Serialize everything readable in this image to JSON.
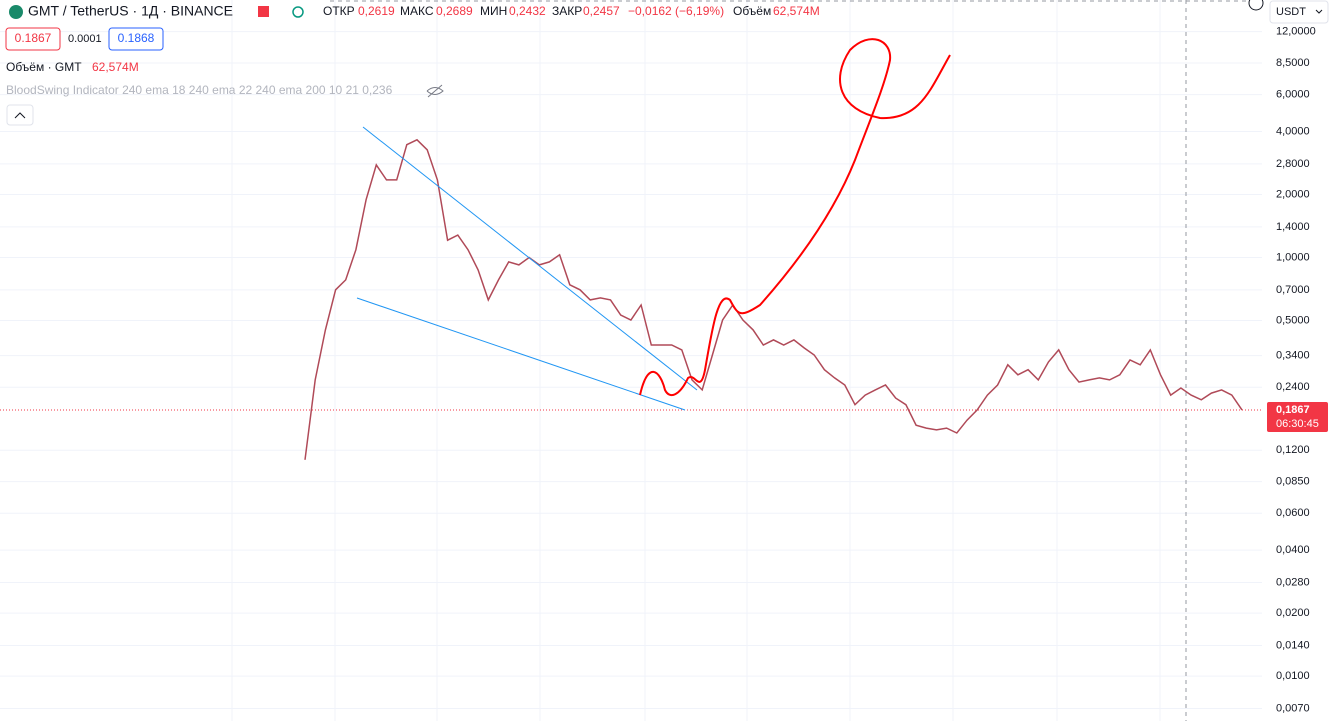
{
  "header": {
    "symbol": "GMT / TetherUS · 1Д · BINANCE",
    "open_label": "ОТКР",
    "open": "0,2619",
    "high_label": "МАКС",
    "high": "0,2689",
    "low_label": "МИН",
    "low": "0,2432",
    "close_label": "ЗАКР",
    "close": "0,2457",
    "change": "−0,0162 (−6,19%)",
    "volume_label": "Объём",
    "volume": "62,574M"
  },
  "order": {
    "sell": "0.1867",
    "spread": "0.0001",
    "buy": "0.1868"
  },
  "volume_indicator": {
    "label": "Объём · GMT",
    "value": "62,574M"
  },
  "indicator": "BloodSwing Indicator 240 ema 18 240 ema 22 240 ema 200 10 21 0,236",
  "currency": "USDT",
  "last_price": {
    "value": 0.1867,
    "label": "0,1867",
    "countdown": "06:30:45"
  },
  "chart_data": {
    "type": "line",
    "log_scale": true,
    "grid": true,
    "color": "#b04a58",
    "ylim": [
      0.0061,
      17
    ],
    "yticks": [
      {
        "value": 12,
        "label": "12,0000"
      },
      {
        "value": 8.5,
        "label": "8,5000"
      },
      {
        "value": 6,
        "label": "6,0000"
      },
      {
        "value": 4,
        "label": "4,0000"
      },
      {
        "value": 2.8,
        "label": "2,8000"
      },
      {
        "value": 2,
        "label": "2,0000"
      },
      {
        "value": 1.4,
        "label": "1,4000"
      },
      {
        "value": 1,
        "label": "1,0000"
      },
      {
        "value": 0.7,
        "label": "0,7000"
      },
      {
        "value": 0.5,
        "label": "0,5000"
      },
      {
        "value": 0.34,
        "label": "0,3400"
      },
      {
        "value": 0.24,
        "label": "0,2400"
      },
      {
        "value": 0.12,
        "label": "0,1200"
      },
      {
        "value": 0.085,
        "label": "0,0850"
      },
      {
        "value": 0.06,
        "label": "0,0600"
      },
      {
        "value": 0.04,
        "label": "0,0400"
      },
      {
        "value": 0.028,
        "label": "0,0280"
      },
      {
        "value": 0.02,
        "label": "0,0200"
      },
      {
        "value": 0.014,
        "label": "0,0140"
      },
      {
        "value": 0.01,
        "label": "0,0100"
      },
      {
        "value": 0.007,
        "label": "0,0070"
      }
    ],
    "values": [
      0.108,
      0.26,
      0.451,
      0.701,
      0.782,
      1.09,
      1.89,
      2.77,
      2.35,
      2.35,
      3.46,
      3.65,
      3.27,
      2.35,
      1.21,
      1.28,
      1.09,
      0.873,
      0.627,
      0.782,
      0.953,
      0.922,
      1.0,
      0.922,
      0.953,
      1.03,
      0.741,
      0.701,
      0.627,
      0.641,
      0.627,
      0.531,
      0.503,
      0.593,
      0.382,
      0.382,
      0.382,
      0.362,
      0.26,
      0.233,
      0.342,
      0.503,
      0.593,
      0.503,
      0.451,
      0.382,
      0.404,
      0.382,
      0.404,
      0.37,
      0.342,
      0.291,
      0.266,
      0.246,
      0.198,
      0.22,
      0.233,
      0.246,
      0.213,
      0.198,
      0.158,
      0.153,
      0.15,
      0.153,
      0.145,
      0.167,
      0.187,
      0.22,
      0.246,
      0.307,
      0.275,
      0.291,
      0.26,
      0.317,
      0.362,
      0.291,
      0.254,
      0.26,
      0.266,
      0.26,
      0.275,
      0.324,
      0.307,
      0.362,
      0.275,
      0.22,
      0.238,
      0.22,
      0.209,
      0.225,
      0.233,
      0.22,
      0.187
    ]
  }
}
